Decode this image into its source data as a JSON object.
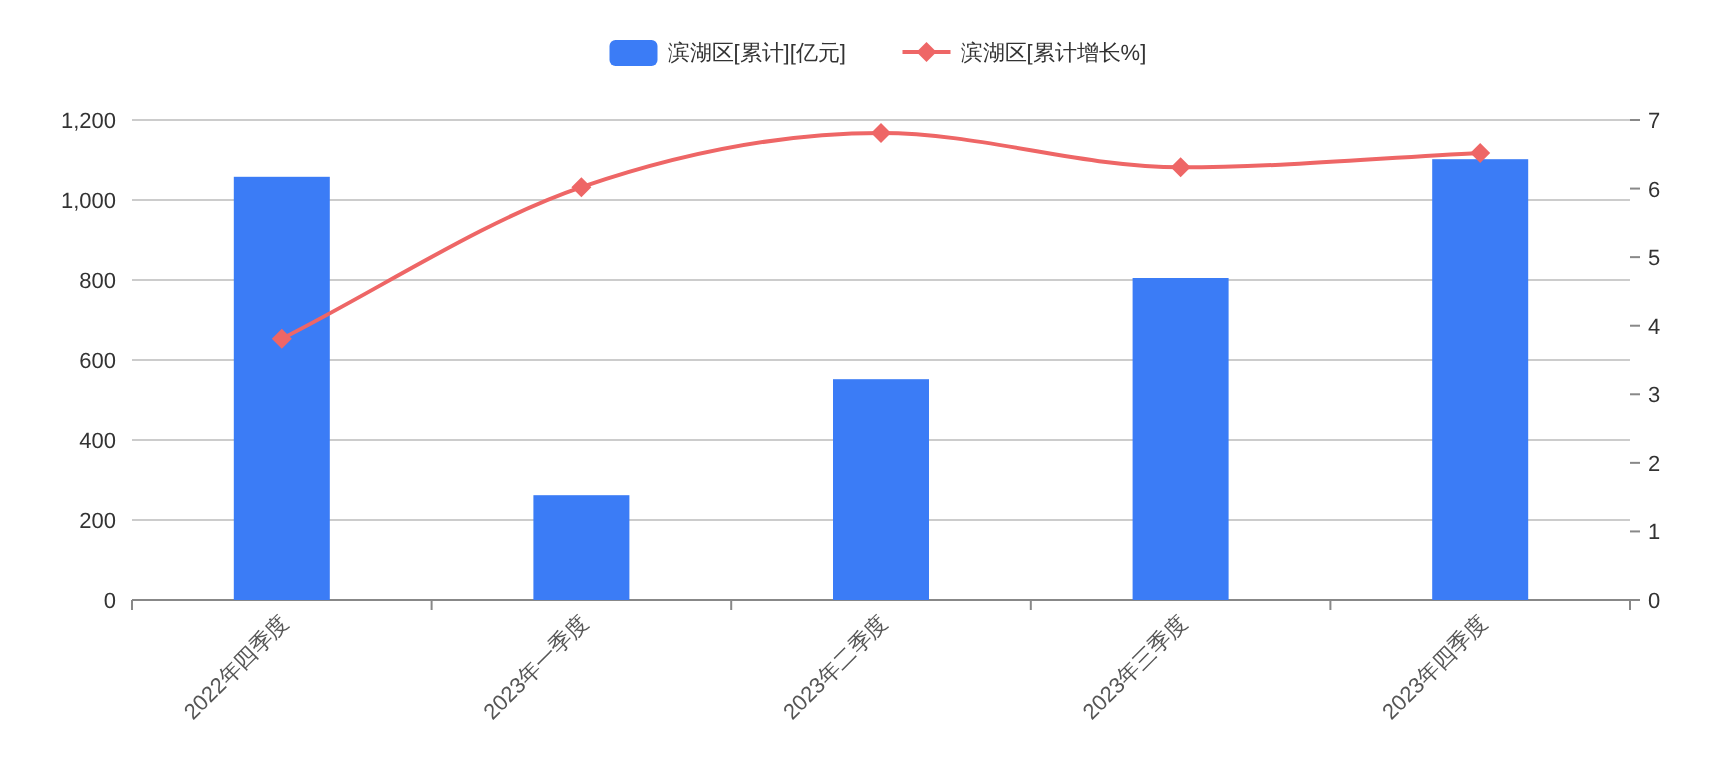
{
  "chart_data": {
    "type": "bar",
    "categories": [
      "2022年四季度",
      "2023年一季度",
      "2023年二季度",
      "2023年三季度",
      "2023年四季度"
    ],
    "series": [
      {
        "name": "滨湖区[累计][亿元]",
        "color": "#3b7cf6",
        "values": [
          1058,
          262,
          552,
          805,
          1102
        ]
      },
      {
        "name": "滨湖区[累计增长%]",
        "type": "line",
        "axis": "y2",
        "color": "#ee6666",
        "marker": "diamond",
        "values": [
          3.81,
          6.02,
          6.81,
          6.31,
          6.52
        ]
      }
    ],
    "ylim": [
      0,
      1200
    ],
    "yticks": [
      0,
      200,
      400,
      600,
      800,
      {
        "value": 1000,
        "label": "1,000"
      },
      {
        "value": 1200,
        "label": "1,200"
      }
    ],
    "y2lim": [
      0,
      7
    ],
    "y2ticks": [
      0,
      1,
      2,
      3,
      4,
      5,
      6,
      7
    ],
    "grid": "y",
    "legend": "top"
  }
}
